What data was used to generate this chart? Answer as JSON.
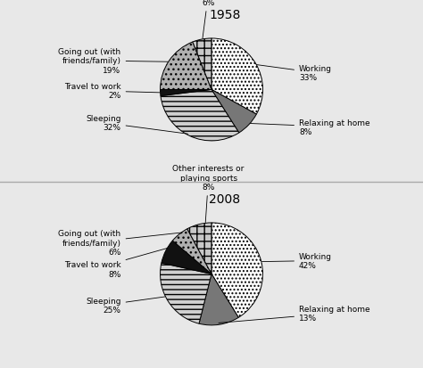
{
  "chart1": {
    "year": "1958",
    "slices": [
      33,
      8,
      32,
      2,
      19,
      6
    ],
    "face_colors": [
      "white",
      "#555555",
      "#cccccc",
      "#111111",
      "#aaaaaa",
      "#dddddd"
    ],
    "hatch_patterns": [
      "....",
      "",
      "---",
      "",
      "oo",
      "oo"
    ],
    "startangle": 90
  },
  "chart2": {
    "year": "2008",
    "slices": [
      42,
      13,
      25,
      8,
      6,
      8
    ],
    "face_colors": [
      "white",
      "#555555",
      "#cccccc",
      "#111111",
      "#aaaaaa",
      "#dddddd"
    ],
    "hatch_patterns": [
      "....",
      "",
      "---",
      "",
      "oo",
      "oo"
    ],
    "startangle": 90
  },
  "bg_color": "#e8e8e8",
  "panel_bg": "#ffffff",
  "font_size": 6.5,
  "title_font_size": 10
}
